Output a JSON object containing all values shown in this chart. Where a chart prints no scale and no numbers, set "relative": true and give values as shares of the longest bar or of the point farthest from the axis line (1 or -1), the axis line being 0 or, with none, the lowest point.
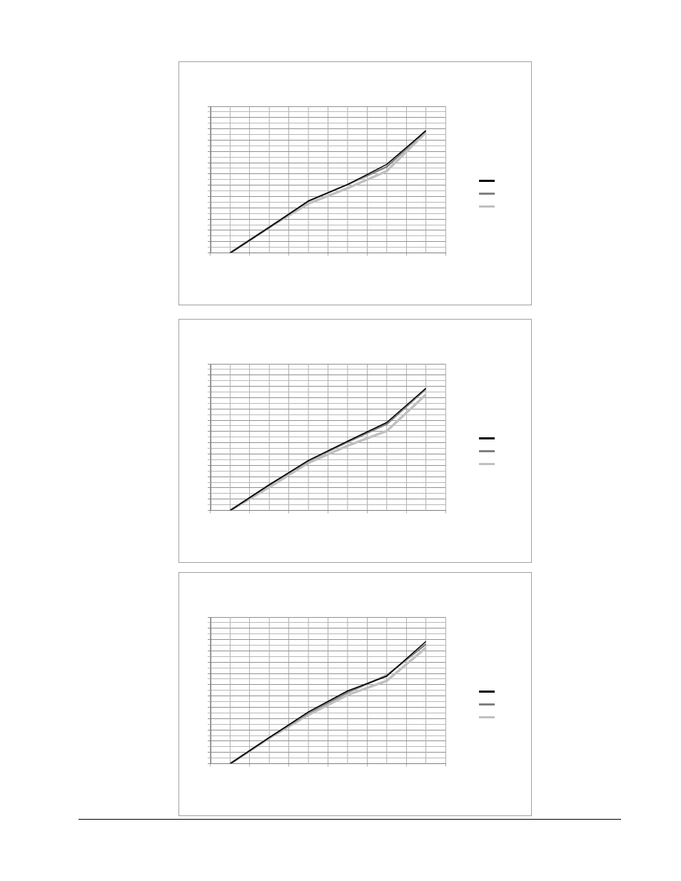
{
  "chart_data": [
    {
      "type": "line",
      "relative": true,
      "grid": true,
      "categories": [
        null,
        null,
        null,
        null,
        null,
        null
      ],
      "series": [
        {
          "color": "#000000",
          "values": [
            0,
            0.21,
            0.425,
            0.56,
            0.725,
            1
          ]
        },
        {
          "color": "#808080",
          "values": [
            0,
            0.21,
            0.425,
            0.56,
            0.705,
            1
          ]
        },
        {
          "color": "#c0c0c0",
          "values": [
            0,
            0.21,
            0.404,
            0.53,
            0.67,
            0.985
          ]
        }
      ]
    },
    {
      "type": "line",
      "relative": true,
      "grid": true,
      "categories": [
        null,
        null,
        null,
        null,
        null,
        null
      ],
      "series": [
        {
          "color": "#000000",
          "values": [
            0,
            0.21,
            0.41,
            0.567,
            0.72,
            1
          ]
        },
        {
          "color": "#808080",
          "values": [
            0,
            0.21,
            0.405,
            0.56,
            0.707,
            0.994
          ]
        },
        {
          "color": "#c0c0c0",
          "values": [
            0,
            0.19,
            0.39,
            0.53,
            0.65,
            0.948
          ]
        }
      ]
    },
    {
      "type": "line",
      "relative": true,
      "grid": true,
      "categories": [
        null,
        null,
        null,
        null,
        null,
        null
      ],
      "series": [
        {
          "color": "#000000",
          "values": [
            0,
            0.214,
            0.424,
            0.596,
            0.716,
            1
          ]
        },
        {
          "color": "#808080",
          "values": [
            0,
            0.214,
            0.416,
            0.584,
            0.723,
            0.978
          ]
        },
        {
          "color": "#c0c0c0",
          "values": [
            0,
            0.21,
            0.4,
            0.563,
            0.678,
            0.948
          ]
        }
      ]
    }
  ]
}
